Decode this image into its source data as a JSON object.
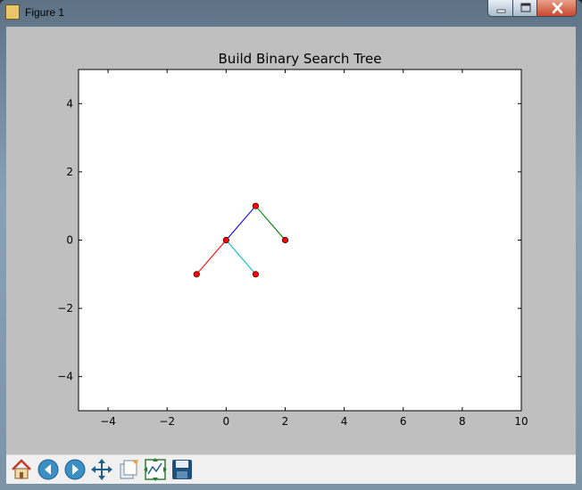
{
  "window": {
    "title": "Figure 1"
  },
  "toolbar": {
    "tools": [
      {
        "name": "home-icon"
      },
      {
        "name": "back-icon"
      },
      {
        "name": "forward-icon"
      },
      {
        "name": "pan-icon"
      },
      {
        "name": "zoom-icon"
      },
      {
        "name": "subplots-icon"
      },
      {
        "name": "save-icon"
      }
    ]
  },
  "chart_data": {
    "type": "line",
    "title": "Build Binary Search Tree",
    "xlabel": "",
    "ylabel": "",
    "xlim": [
      -5,
      10
    ],
    "ylim": [
      -5,
      5
    ],
    "xticks": [
      -4,
      -2,
      0,
      2,
      4,
      6,
      8,
      10
    ],
    "xtick_labels": [
      "−4",
      "−2",
      "0",
      "2",
      "4",
      "6",
      "8",
      "10"
    ],
    "yticks": [
      -4,
      -2,
      0,
      2,
      4
    ],
    "ytick_labels": [
      "−4",
      "−2",
      "0",
      "2",
      "4"
    ],
    "grid": false,
    "series": [
      {
        "color": "#0000ff",
        "x": [
          0,
          1
        ],
        "y": [
          0,
          1
        ]
      },
      {
        "color": "#008000",
        "x": [
          1,
          2
        ],
        "y": [
          1,
          0
        ]
      },
      {
        "color": "#ff0000",
        "x": [
          0,
          -1
        ],
        "y": [
          0,
          -1
        ]
      },
      {
        "color": "#00bfbf",
        "x": [
          0,
          1
        ],
        "y": [
          0,
          -1
        ]
      }
    ],
    "nodes": {
      "color": "#ff0000",
      "x": [
        1,
        0,
        2,
        -1,
        1
      ],
      "y": [
        1,
        0,
        0,
        -1,
        -1
      ]
    }
  }
}
